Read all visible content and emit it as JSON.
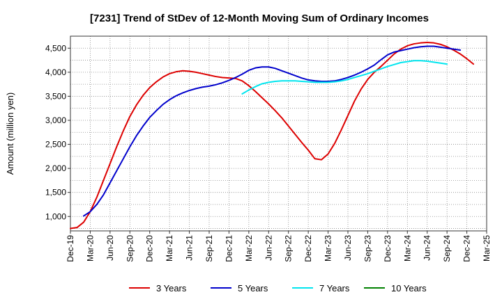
{
  "chart_data": {
    "type": "line",
    "title": "[7231]  Trend of StDev of 12-Month Moving Sum of Ordinary Incomes",
    "xlabel": "",
    "ylabel": "Amount (million yen)",
    "ylim": [
      700,
      4750
    ],
    "x_tick_labels": [
      "Dec-19",
      "Mar-20",
      "Jun-20",
      "Sep-20",
      "Dec-20",
      "Mar-21",
      "Jun-21",
      "Sep-21",
      "Dec-21",
      "Mar-22",
      "Jun-22",
      "Sep-22",
      "Dec-22",
      "Mar-23",
      "Jun-23",
      "Sep-23",
      "Dec-23",
      "Mar-24",
      "Jun-24",
      "Sep-24",
      "Dec-24",
      "Mar-25"
    ],
    "y_ticks": [
      1000,
      1500,
      2000,
      2500,
      3000,
      3500,
      4000,
      4500
    ],
    "y_tick_labels": [
      "1,000",
      "1,500",
      "2,000",
      "2,500",
      "3,000",
      "3,500",
      "4,000",
      "4,500"
    ],
    "grid": true,
    "legend_position": "bottom",
    "series": [
      {
        "name": "3 Years",
        "color": "#dd0000",
        "start_index": 0,
        "values": [
          750,
          770,
          880,
          1100,
          1400,
          1750,
          2100,
          2450,
          2780,
          3080,
          3320,
          3520,
          3680,
          3800,
          3900,
          3970,
          4010,
          4030,
          4020,
          4000,
          3970,
          3940,
          3910,
          3890,
          3880,
          3870,
          3820,
          3720,
          3600,
          3470,
          3340,
          3200,
          3050,
          2880,
          2710,
          2540,
          2380,
          2200,
          2180,
          2300,
          2520,
          2800,
          3100,
          3400,
          3650,
          3850,
          4000,
          4120,
          4250,
          4380,
          4480,
          4550,
          4590,
          4610,
          4620,
          4610,
          4580,
          4530,
          4460,
          4380,
          4280,
          4170
        ]
      },
      {
        "name": "5 Years",
        "color": "#0000cc",
        "start_index": 2,
        "values": [
          1010,
          1100,
          1250,
          1450,
          1700,
          1950,
          2200,
          2450,
          2680,
          2880,
          3060,
          3200,
          3330,
          3430,
          3510,
          3570,
          3620,
          3660,
          3690,
          3710,
          3740,
          3780,
          3830,
          3890,
          3960,
          4040,
          4090,
          4110,
          4110,
          4080,
          4030,
          3980,
          3930,
          3880,
          3840,
          3820,
          3810,
          3810,
          3820,
          3850,
          3890,
          3940,
          4000,
          4070,
          4150,
          4260,
          4360,
          4420,
          4450,
          4480,
          4510,
          4530,
          4540,
          4540,
          4520,
          4500,
          4480,
          4460
        ]
      },
      {
        "name": "7 Years",
        "color": "#00e5ee",
        "start_index": 26,
        "values": [
          3550,
          3630,
          3700,
          3760,
          3790,
          3810,
          3820,
          3820,
          3820,
          3810,
          3800,
          3790,
          3790,
          3790,
          3800,
          3820,
          3850,
          3890,
          3930,
          3970,
          4020,
          4070,
          4120,
          4160,
          4200,
          4220,
          4240,
          4240,
          4230,
          4210,
          4190,
          4170
        ]
      },
      {
        "name": "10 Years",
        "color": "#008000",
        "start_index": 0,
        "values": []
      }
    ]
  }
}
